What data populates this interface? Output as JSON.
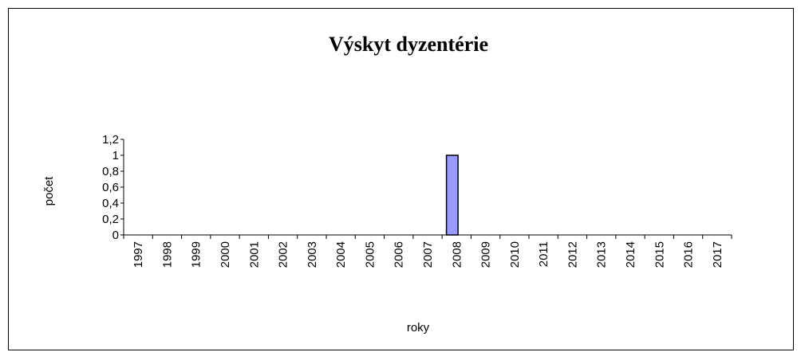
{
  "chart_data": {
    "type": "bar",
    "title": "Výskyt dyzentérie",
    "x_label": "roky",
    "y_label": "počet",
    "categories": [
      "1997",
      "1998",
      "1999",
      "2000",
      "2001",
      "2002",
      "2003",
      "2004",
      "2005",
      "2006",
      "2007",
      "2008",
      "2009",
      "2010",
      "2011",
      "2012",
      "2013",
      "2014",
      "2015",
      "2016",
      "2017"
    ],
    "values": [
      0,
      0,
      0,
      0,
      0,
      0,
      0,
      0,
      0,
      0,
      0,
      1,
      0,
      0,
      0,
      0,
      0,
      0,
      0,
      0,
      0
    ],
    "color": "#9999ff",
    "ylim": [
      0,
      1.2
    ],
    "yticks": [
      0,
      {
        "value": 0.2,
        "label": "0,2"
      },
      {
        "value": 0.4,
        "label": "0,4"
      },
      {
        "value": 0.6,
        "label": "0,6"
      },
      {
        "value": 0.8,
        "label": "0,8"
      },
      1,
      {
        "value": 1.2,
        "label": "1,2"
      }
    ],
    "grid": false
  }
}
